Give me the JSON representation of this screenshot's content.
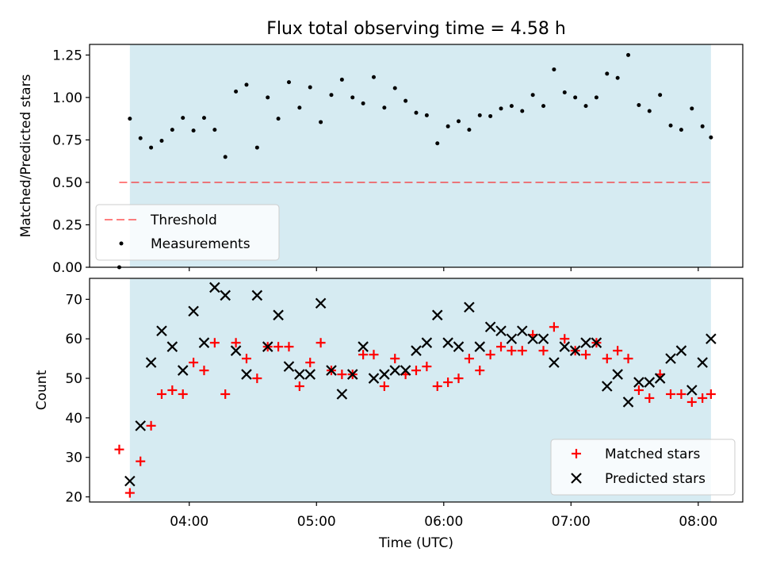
{
  "figure": {
    "title": "Flux total observing time = 4.58 h",
    "xlabel": "Time (UTC)"
  },
  "colors": {
    "background": "#ffffff",
    "shade": "#add8e6",
    "threshold": "#ff0000",
    "matched": "#ff0000",
    "predicted": "#000000",
    "measurement": "#000000"
  },
  "chart_data": [
    {
      "type": "scatter",
      "ylabel": "Matched/Predicted stars",
      "ylim": [
        0,
        1.3125
      ],
      "yticks": [
        0,
        0.25,
        0.5,
        0.75,
        1.0,
        1.25
      ],
      "ytick_labels": [
        "0.00",
        "0.25",
        "0.50",
        "0.75",
        "1.00",
        "1.25"
      ],
      "xlim": [
        "03:13",
        "08:21"
      ],
      "xticks": [
        "04:00",
        "05:00",
        "06:00",
        "07:00",
        "08:00"
      ],
      "shaded_span": [
        "03:32",
        "08:06"
      ],
      "threshold": {
        "name": "Threshold",
        "y": 0.5,
        "x_range": [
          "03:27",
          "08:06"
        ],
        "style": "dashed"
      },
      "legend_position": "lower left",
      "series": [
        {
          "name": "Measurements",
          "x": [
            "03:27",
            "03:32",
            "03:37",
            "03:42",
            "03:47",
            "03:52",
            "03:57",
            "04:02",
            "04:07",
            "04:12",
            "04:17",
            "04:22",
            "04:27",
            "04:32",
            "04:37",
            "04:42",
            "04:47",
            "04:52",
            "04:57",
            "05:02",
            "05:07",
            "05:12",
            "05:17",
            "05:22",
            "05:27",
            "05:32",
            "05:37",
            "05:42",
            "05:47",
            "05:52",
            "05:57",
            "06:02",
            "06:07",
            "06:12",
            "06:17",
            "06:22",
            "06:27",
            "06:32",
            "06:37",
            "06:42",
            "06:47",
            "06:52",
            "06:57",
            "07:02",
            "07:07",
            "07:12",
            "07:17",
            "07:22",
            "07:27",
            "07:32",
            "07:37",
            "07:42",
            "07:47",
            "07:52",
            "07:57",
            "08:02",
            "08:06"
          ],
          "y": [
            0.0,
            0.875,
            0.76,
            0.705,
            0.745,
            0.81,
            0.88,
            0.805,
            0.88,
            0.81,
            0.65,
            1.035,
            1.075,
            0.705,
            1.0,
            0.875,
            1.09,
            0.94,
            1.06,
            0.855,
            1.015,
            1.105,
            1.0,
            0.965,
            1.12,
            0.94,
            1.055,
            0.98,
            0.91,
            0.895,
            0.73,
            0.83,
            0.86,
            0.81,
            0.895,
            0.89,
            0.935,
            0.95,
            0.92,
            1.015,
            0.95,
            1.165,
            1.03,
            1.0,
            0.95,
            1.0,
            1.14,
            1.115,
            1.25,
            0.955,
            0.92,
            1.015,
            0.835,
            0.81,
            0.935,
            0.83,
            0.765
          ]
        }
      ]
    },
    {
      "type": "scatter",
      "ylabel": "Count",
      "ylim": [
        18.7,
        75.3
      ],
      "yticks": [
        20,
        30,
        40,
        50,
        60,
        70
      ],
      "ytick_labels": [
        "20",
        "30",
        "40",
        "50",
        "60",
        "70"
      ],
      "xlim": [
        "03:13",
        "08:21"
      ],
      "xticks": [
        "04:00",
        "05:00",
        "06:00",
        "07:00",
        "08:00"
      ],
      "xtick_labels": [
        "04:00",
        "05:00",
        "06:00",
        "07:00",
        "08:00"
      ],
      "shaded_span": [
        "03:32",
        "08:06"
      ],
      "legend_position": "lower right",
      "x": [
        "03:27",
        "03:32",
        "03:37",
        "03:42",
        "03:47",
        "03:52",
        "03:57",
        "04:02",
        "04:07",
        "04:12",
        "04:17",
        "04:22",
        "04:27",
        "04:32",
        "04:37",
        "04:42",
        "04:47",
        "04:52",
        "04:57",
        "05:02",
        "05:07",
        "05:12",
        "05:17",
        "05:22",
        "05:27",
        "05:32",
        "05:37",
        "05:42",
        "05:47",
        "05:52",
        "05:57",
        "06:02",
        "06:07",
        "06:12",
        "06:17",
        "06:22",
        "06:27",
        "06:32",
        "06:37",
        "06:42",
        "06:47",
        "06:52",
        "06:57",
        "07:02",
        "07:07",
        "07:12",
        "07:17",
        "07:22",
        "07:27",
        "07:32",
        "07:37",
        "07:42",
        "07:47",
        "07:52",
        "07:57",
        "08:02",
        "08:06"
      ],
      "series": [
        {
          "name": "Matched stars",
          "marker": "plus",
          "values": [
            32,
            21,
            29,
            38,
            46,
            47,
            46,
            54,
            52,
            59,
            46,
            59,
            55,
            50,
            58,
            58,
            58,
            48,
            54,
            59,
            52,
            51,
            51,
            56,
            56,
            48,
            55,
            51,
            52,
            53,
            48,
            49,
            50,
            55,
            52,
            56,
            58,
            57,
            57,
            61,
            57,
            63,
            60,
            57,
            56,
            59,
            55,
            57,
            55,
            47,
            45,
            51,
            46,
            46,
            44,
            45,
            46
          ]
        },
        {
          "name": "Predicted stars",
          "marker": "x",
          "values": [
            null,
            24,
            38,
            54,
            62,
            58,
            52,
            67,
            59,
            73,
            71,
            57,
            51,
            71,
            58,
            66,
            53,
            51,
            51,
            69,
            52,
            46,
            51,
            58,
            50,
            51,
            52,
            52,
            57,
            59,
            66,
            59,
            58,
            68,
            58,
            63,
            62,
            60,
            62,
            60,
            60,
            54,
            58,
            57,
            59,
            59,
            48,
            51,
            44,
            49,
            49,
            50,
            55,
            57,
            47,
            54,
            60
          ]
        }
      ]
    }
  ]
}
